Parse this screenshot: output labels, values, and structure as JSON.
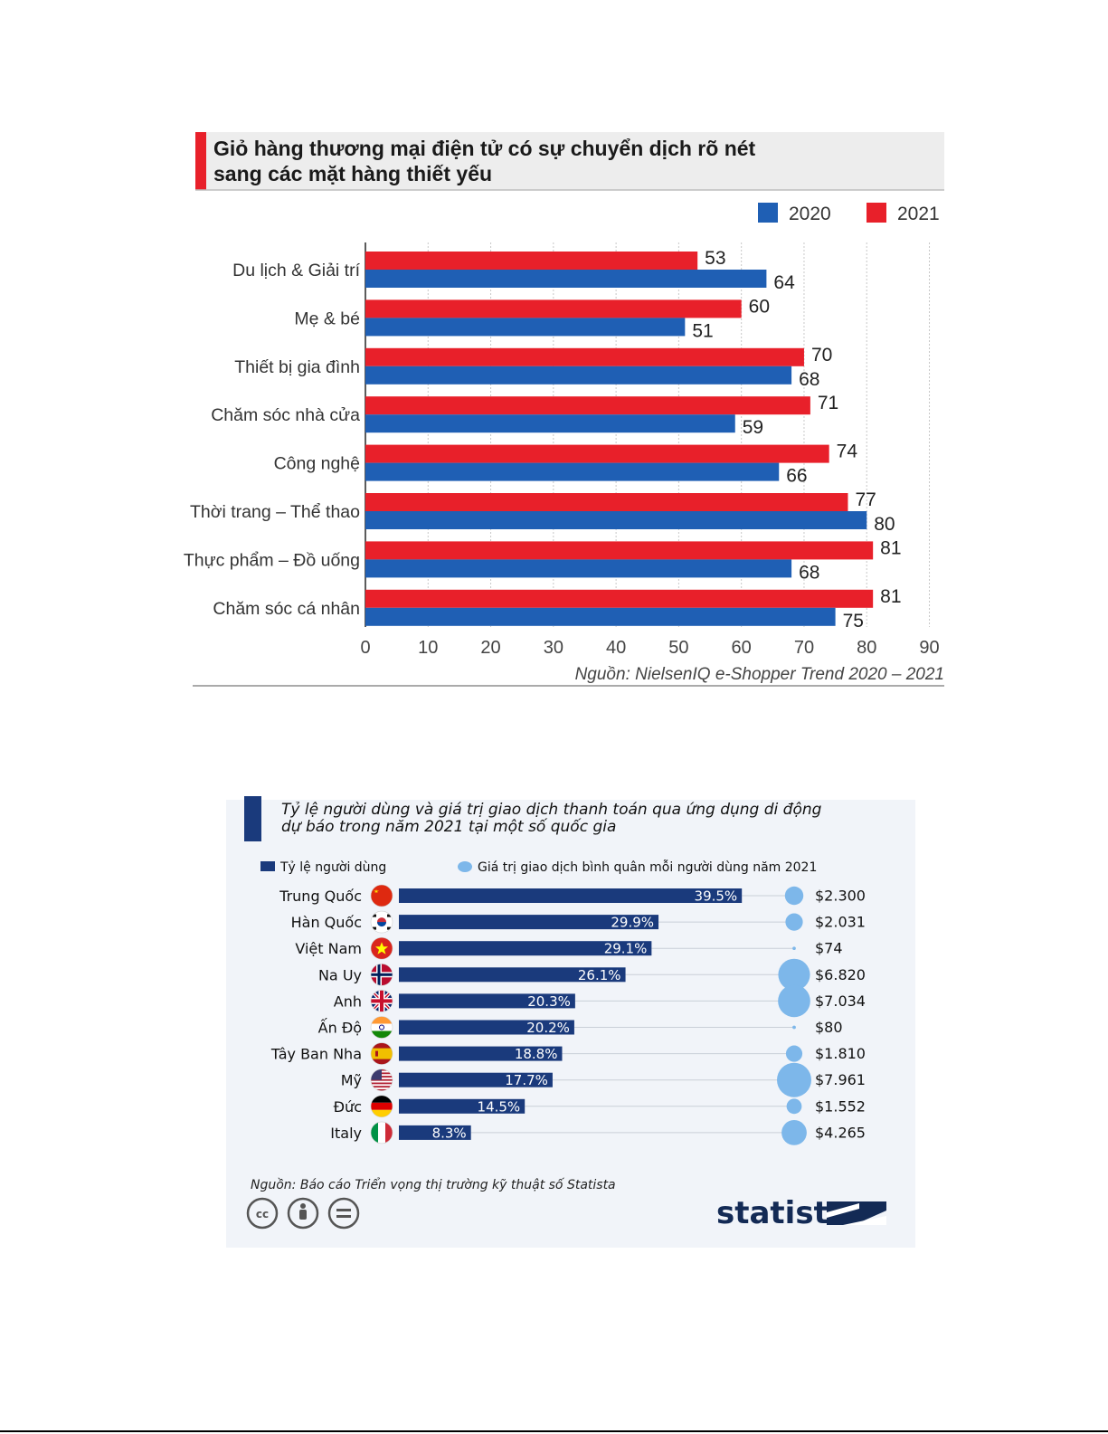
{
  "chart_data": [
    {
      "type": "bar",
      "title": "Giỏ hàng thương mại điện tử có sự chuyển dịch rõ nét\nsang các mặt hàng thiết yếu",
      "categories": [
        "Du lịch & Giải trí",
        "Mẹ & bé",
        "Thiết bị gia đình",
        "Chăm sóc nhà cửa",
        "Công nghệ",
        "Thời trang – Thể thao",
        "Thực phẩm – Đồ uống",
        "Chăm sóc cá nhân"
      ],
      "series": [
        {
          "name": "2021",
          "color": "#e8202a",
          "values": [
            53,
            60,
            70,
            71,
            74,
            77,
            81,
            81
          ]
        },
        {
          "name": "2020",
          "color": "#1f5fb4",
          "values": [
            64,
            51,
            68,
            59,
            66,
            80,
            68,
            75
          ]
        }
      ],
      "legend_order": [
        "2020",
        "2021"
      ],
      "xlim": [
        0,
        90
      ],
      "xticks": [
        "0",
        "10",
        "20",
        "30",
        "40",
        "50",
        "60",
        "70",
        "80",
        "90"
      ],
      "grid": true,
      "legend": "top-right",
      "source": "Nguồn: NielsenIQ e-Shopper Trend 2020 – 2021"
    },
    {
      "type": "bar",
      "title": "Tỷ lệ người dùng và giá trị giao dịch thanh toán qua ứng dụng di động\ndự báo trong năm 2021 tại một số quốc gia",
      "categories": [
        "Trung Quốc",
        "Hàn Quốc",
        "Việt Nam",
        "Na Uy",
        "Anh",
        "Ấn Độ",
        "Tây Ban Nha",
        "Mỹ",
        "Đức",
        "Italy"
      ],
      "flags": [
        "china-flag-icon",
        "south-korea-flag-icon",
        "vietnam-flag-icon",
        "norway-flag-icon",
        "uk-flag-icon",
        "india-flag-icon",
        "spain-flag-icon",
        "usa-flag-icon",
        "germany-flag-icon",
        "italy-flag-icon"
      ],
      "series": [
        {
          "name": "Tỷ lệ người dùng",
          "color": "#1a3a7c",
          "values": [
            39.5,
            29.9,
            29.1,
            26.1,
            20.3,
            20.2,
            18.8,
            17.7,
            14.5,
            8.3
          ],
          "labels": [
            "39.5%",
            "29.9%",
            "29.1%",
            "26.1%",
            "20.3%",
            "20.2%",
            "18.8%",
            "17.7%",
            "14.5%",
            "8.3%"
          ]
        },
        {
          "name": "Giá trị giao dịch bình quân mỗi người dùng năm 2021",
          "color": "#7db7ea",
          "values": [
            2300,
            2031,
            74,
            6820,
            7034,
            80,
            1810,
            7961,
            1552,
            4265
          ],
          "labels": [
            "$2.300",
            "$2.031",
            "$74",
            "$6.820",
            "$7.034",
            "$80",
            "$1.810",
            "$7.961",
            "$1.552",
            "$4.265"
          ]
        }
      ],
      "source": "Nguồn: Báo cáo Triển vọng thị trường kỹ thuật số Statista",
      "brand": "statista",
      "license_icons": [
        "cc-icon",
        "attribution-icon",
        "no-derivatives-icon"
      ]
    }
  ]
}
